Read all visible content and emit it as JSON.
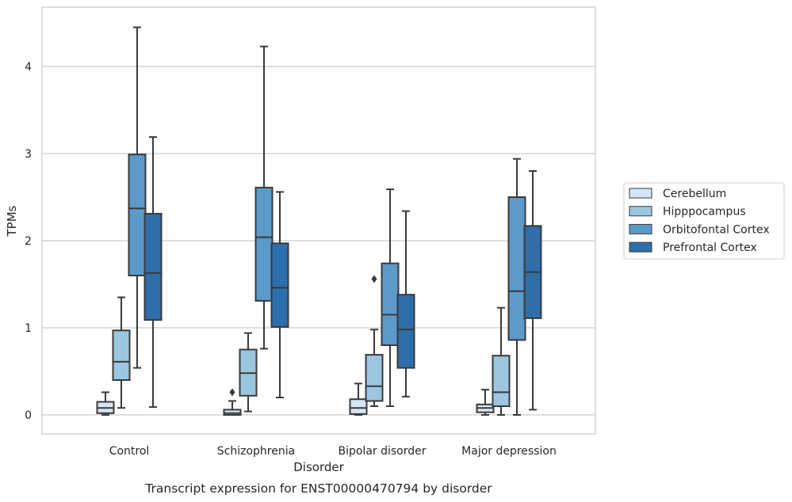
{
  "chart_data": {
    "type": "box",
    "title": "Transcript expression for ENST00000470794 by disorder",
    "xlabel": "Disorder",
    "ylabel": "TPMs",
    "ylim": [
      -0.22,
      4.7
    ],
    "yticks": [
      0,
      1,
      2,
      3,
      4
    ],
    "grid": "horizontal",
    "legend_position": "right",
    "categories": [
      "Control",
      "Schizophrenia",
      "Bipolar disorder",
      "Major depression"
    ],
    "series": [
      {
        "name": "Cerebellum",
        "color": "#d6e5f3",
        "boxes": [
          {
            "min": 0.0,
            "q1": 0.02,
            "median": 0.08,
            "q3": 0.15,
            "max": 0.26,
            "outliers": []
          },
          {
            "min": 0.0,
            "q1": 0.0,
            "median": 0.02,
            "q3": 0.06,
            "max": 0.16,
            "outliers": [
              0.26
            ]
          },
          {
            "min": 0.0,
            "q1": 0.01,
            "median": 0.08,
            "q3": 0.18,
            "max": 0.36,
            "outliers": []
          },
          {
            "min": 0.0,
            "q1": 0.03,
            "median": 0.08,
            "q3": 0.12,
            "max": 0.29,
            "outliers": []
          }
        ]
      },
      {
        "name": "Hipppocampus",
        "color": "#9bc6e0",
        "boxes": [
          {
            "min": 0.08,
            "q1": 0.4,
            "median": 0.61,
            "q3": 0.97,
            "max": 1.35,
            "outliers": []
          },
          {
            "min": 0.04,
            "q1": 0.22,
            "median": 0.48,
            "q3": 0.75,
            "max": 0.94,
            "outliers": []
          },
          {
            "min": 0.1,
            "q1": 0.16,
            "median": 0.33,
            "q3": 0.69,
            "max": 0.98,
            "outliers": [
              1.56
            ]
          },
          {
            "min": 0.0,
            "q1": 0.1,
            "median": 0.26,
            "q3": 0.68,
            "max": 1.23,
            "outliers": []
          }
        ]
      },
      {
        "name": "Orbitofontal Cortex",
        "color": "#5c9ac9",
        "boxes": [
          {
            "min": 0.54,
            "q1": 1.6,
            "median": 2.37,
            "q3": 2.99,
            "max": 4.45,
            "outliers": []
          },
          {
            "min": 0.76,
            "q1": 1.31,
            "median": 2.04,
            "q3": 2.61,
            "max": 4.23,
            "outliers": []
          },
          {
            "min": 0.1,
            "q1": 0.8,
            "median": 1.15,
            "q3": 1.74,
            "max": 2.59,
            "outliers": []
          },
          {
            "min": 0.0,
            "q1": 0.86,
            "median": 1.42,
            "q3": 2.5,
            "max": 2.94,
            "outliers": []
          }
        ]
      },
      {
        "name": "Prefrontal Cortex",
        "color": "#2d6eab",
        "boxes": [
          {
            "min": 0.09,
            "q1": 1.09,
            "median": 1.63,
            "q3": 2.31,
            "max": 3.19,
            "outliers": []
          },
          {
            "min": 0.2,
            "q1": 1.01,
            "median": 1.46,
            "q3": 1.97,
            "max": 2.56,
            "outliers": []
          },
          {
            "min": 0.21,
            "q1": 0.54,
            "median": 0.98,
            "q3": 1.38,
            "max": 2.34,
            "outliers": []
          },
          {
            "min": 0.06,
            "q1": 1.11,
            "median": 1.64,
            "q3": 2.17,
            "max": 2.8,
            "outliers": []
          }
        ]
      }
    ]
  }
}
